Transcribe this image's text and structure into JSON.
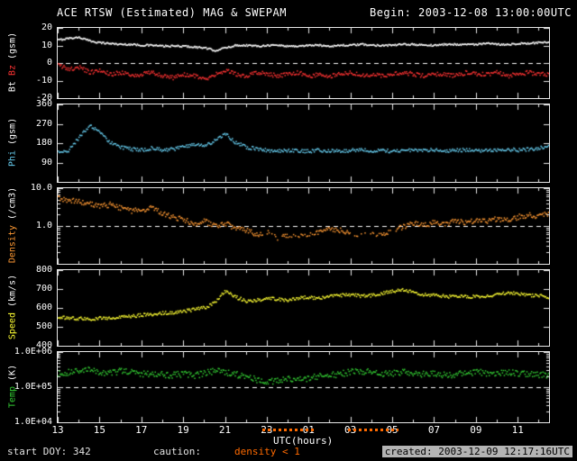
{
  "title": "ACE RTSW (Estimated) MAG & SWEPAM",
  "begin": "Begin: 2003-12-08 13:00:00UTC",
  "footer": {
    "start_doy": "start DOY: 342",
    "caution_label": "caution:",
    "caution_value": "density < 1",
    "created": "created: 2003-12-09 12:17:16UTC"
  },
  "x_axis": {
    "label": "UTC(hours)",
    "range_hours": [
      13,
      36.5
    ],
    "major_tick_hours": [
      13,
      15,
      17,
      19,
      21,
      23,
      25,
      27,
      29,
      31,
      33,
      35
    ],
    "tick_labels": [
      "13",
      "15",
      "17",
      "19",
      "21",
      "23",
      "01",
      "03",
      "05",
      "07",
      "09",
      "11"
    ],
    "caution_intervals_hours": [
      [
        22.8,
        25.3
      ],
      [
        26.9,
        29.3
      ]
    ]
  },
  "colors": {
    "background": "#000000",
    "frame": "#e8e8e8",
    "bt": "#ffffff",
    "bz": "#ff3333",
    "phi": "#66ccee",
    "density": "#ff9933",
    "speed": "#ffff33",
    "temp": "#33cc33",
    "caution": "#ff6a00"
  },
  "chart_data": [
    {
      "id": "bt_bz",
      "type": "scatter",
      "yscale": "linear",
      "ylim": [
        -20,
        20
      ],
      "yticks": [
        20,
        10,
        0,
        -10,
        -20
      ],
      "ytick_labels": [
        "20",
        "10",
        "0",
        "-10",
        "-20"
      ],
      "refline": 0,
      "ylabel_parts": [
        {
          "text": "Bt",
          "color": "#ffffff"
        },
        {
          "text": "Bz",
          "color": "#ff3333"
        },
        {
          "text": "(gsm)",
          "color": "#ffffff"
        }
      ],
      "series": [
        {
          "name": "Bt",
          "color": "#ffffff",
          "noise": 0.5,
          "dot": 1.6,
          "x_start": 13,
          "x_step": 0.5,
          "y": [
            13.5,
            14.5,
            15,
            13,
            12,
            11.5,
            11,
            11,
            10.5,
            10.5,
            10,
            10,
            10,
            9.5,
            9,
            7.5,
            9,
            10.5,
            10.5,
            10,
            10.5,
            10.5,
            10,
            10,
            10.5,
            10.5,
            10,
            10.5,
            10.5,
            11,
            10.5,
            10.5,
            10.5,
            11,
            11,
            10.5,
            10.5,
            11,
            11,
            11,
            11,
            11.5,
            11,
            11,
            11.5,
            11.5,
            12,
            12
          ]
        },
        {
          "name": "Bz",
          "color": "#ff3333",
          "noise": 1.2,
          "dot": 1.5,
          "x_start": 13,
          "x_step": 0.5,
          "y": [
            -1,
            -3,
            -2,
            -5,
            -4,
            -6,
            -5,
            -7,
            -6,
            -5,
            -7,
            -8,
            -6,
            -7,
            -9,
            -6,
            -4,
            -6,
            -7,
            -5,
            -6,
            -7,
            -6,
            -5,
            -7,
            -6,
            -7,
            -6,
            -5,
            -7,
            -6,
            -7,
            -6,
            -5,
            -6,
            -7,
            -6,
            -6,
            -7,
            -5,
            -6,
            -6,
            -5,
            -7,
            -6,
            -5,
            -6,
            -6
          ]
        }
      ]
    },
    {
      "id": "phi",
      "type": "scatter",
      "yscale": "linear",
      "ylim": [
        0,
        360
      ],
      "yticks": [
        360,
        270,
        180,
        90
      ],
      "ytick_labels": [
        "360",
        "270",
        "180",
        "90"
      ],
      "refline": null,
      "ylabel_parts": [
        {
          "text": "Phi",
          "color": "#66ccee"
        },
        {
          "text": "(gsm)",
          "color": "#ffffff"
        }
      ],
      "series": [
        {
          "name": "Phi",
          "color": "#66ccee",
          "noise": 8,
          "dot": 1.5,
          "x_start": 13,
          "x_step": 0.5,
          "y": [
            140,
            150,
            210,
            265,
            230,
            185,
            165,
            155,
            150,
            160,
            150,
            155,
            165,
            180,
            170,
            195,
            225,
            185,
            165,
            155,
            150,
            145,
            150,
            148,
            145,
            150,
            148,
            145,
            150,
            152,
            148,
            150,
            145,
            150,
            148,
            152,
            150,
            148,
            150,
            152,
            150,
            148,
            152,
            155,
            150,
            155,
            160,
            170
          ]
        }
      ]
    },
    {
      "id": "density",
      "type": "scatter",
      "yscale": "log",
      "ylim": [
        0.1,
        10
      ],
      "yticks": [
        10,
        1
      ],
      "ytick_labels": [
        "10.0",
        "1.0"
      ],
      "refline": 1,
      "ylabel_parts": [
        {
          "text": "Density",
          "color": "#ff9933"
        },
        {
          "text": "(/cm3)",
          "color": "#ffffff"
        }
      ],
      "series": [
        {
          "name": "Density",
          "color": "#ff9933",
          "noise": 0.07,
          "dot": 1.5,
          "x_start": 13,
          "x_step": 0.5,
          "gap_intervals": [
            [
              22.8,
              25.3
            ],
            [
              26.9,
              29.3
            ]
          ],
          "gap_drop": 0.45,
          "y": [
            5.5,
            5.0,
            4.5,
            4.0,
            3.5,
            3.8,
            3.0,
            2.6,
            2.8,
            3.2,
            2.2,
            1.8,
            1.5,
            1.2,
            1.4,
            1.0,
            1.2,
            0.9,
            0.8,
            0.6,
            0.7,
            0.5,
            0.6,
            0.55,
            0.6,
            0.7,
            0.9,
            0.8,
            0.7,
            0.6,
            0.7,
            0.6,
            0.8,
            1.0,
            1.2,
            1.1,
            1.3,
            1.2,
            1.4,
            1.3,
            1.5,
            1.4,
            1.6,
            1.5,
            1.8,
            2.0,
            1.9,
            2.2
          ]
        }
      ]
    },
    {
      "id": "speed",
      "type": "scatter",
      "yscale": "linear",
      "ylim": [
        400,
        800
      ],
      "yticks": [
        800,
        700,
        600,
        500,
        400
      ],
      "ytick_labels": [
        "800",
        "700",
        "600",
        "500",
        "400"
      ],
      "refline": null,
      "ylabel_parts": [
        {
          "text": "Speed",
          "color": "#ffff33"
        },
        {
          "text": "(km/s)",
          "color": "#ffffff"
        }
      ],
      "series": [
        {
          "name": "Speed",
          "color": "#ffff33",
          "noise": 9,
          "dot": 1.5,
          "x_start": 13,
          "x_step": 0.5,
          "y": [
            555,
            550,
            548,
            545,
            550,
            548,
            555,
            560,
            565,
            570,
            575,
            580,
            585,
            595,
            605,
            630,
            695,
            660,
            640,
            645,
            655,
            650,
            645,
            655,
            660,
            655,
            665,
            670,
            675,
            665,
            670,
            680,
            690,
            700,
            685,
            675,
            670,
            665,
            660,
            665,
            662,
            668,
            672,
            685,
            680,
            672,
            668,
            660
          ]
        }
      ]
    },
    {
      "id": "temp",
      "type": "scatter",
      "yscale": "log",
      "ylim": [
        10000,
        1000000
      ],
      "yticks": [
        1000000,
        100000,
        10000
      ],
      "ytick_labels": [
        "1.0E+06",
        "1.0E+05",
        "1.0E+04"
      ],
      "refline": 100000,
      "ylabel_parts": [
        {
          "text": "Temp",
          "color": "#33cc33"
        },
        {
          "text": "(K)",
          "color": "#ffffff"
        }
      ],
      "series": [
        {
          "name": "Temp",
          "color": "#33cc33",
          "noise": 0.09,
          "dot": 1.5,
          "x_start": 13,
          "x_step": 0.5,
          "y": [
            250000,
            280000,
            300000,
            320000,
            280000,
            260000,
            300000,
            280000,
            250000,
            260000,
            240000,
            230000,
            250000,
            220000,
            260000,
            300000,
            280000,
            240000,
            200000,
            170000,
            150000,
            160000,
            180000,
            170000,
            190000,
            210000,
            230000,
            250000,
            280000,
            300000,
            270000,
            250000,
            260000,
            280000,
            260000,
            240000,
            250000,
            230000,
            240000,
            260000,
            280000,
            260000,
            250000,
            270000,
            260000,
            250000,
            240000,
            230000
          ]
        }
      ]
    }
  ]
}
